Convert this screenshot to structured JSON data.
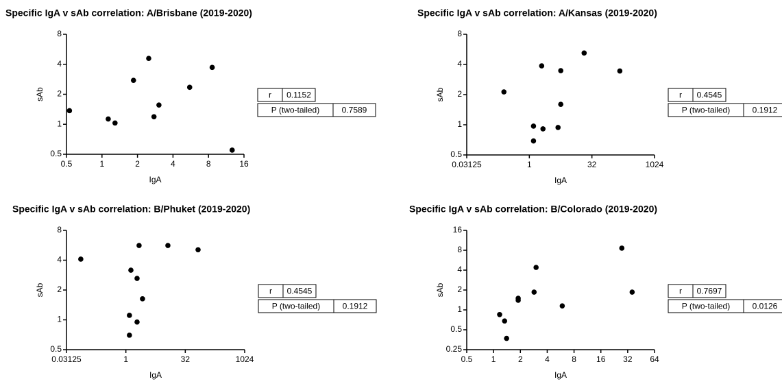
{
  "chart_data": [
    {
      "type": "scatter",
      "title": "Specific IgA v sAb correlation: A/Brisbane (2019-2020)",
      "x_label": "IgA",
      "y_label": "sAb",
      "xscale": "log",
      "yscale": "log",
      "color": "#000000",
      "x": [
        0.53,
        1.13,
        1.29,
        1.85,
        2.49,
        2.76,
        3.04,
        5.54,
        8.6,
        12.7
      ],
      "values": [
        1.37,
        1.13,
        1.03,
        2.76,
        4.58,
        1.19,
        1.56,
        2.35,
        3.72,
        0.55
      ],
      "xlim": [
        0.5,
        16
      ],
      "xticks": [
        0.5,
        1,
        2,
        4,
        8,
        16
      ],
      "ylim": [
        0.5,
        8
      ],
      "yticks": [
        0.5,
        1,
        2,
        4,
        8
      ],
      "stats": [
        {
          "label": "r",
          "value": 0.1152
        },
        {
          "label": "P (two-tailed)",
          "value": 0.7589
        }
      ]
    },
    {
      "type": "scatter",
      "title": "Specific IgA v sAb correlation: A/Kansas (2019-2020)",
      "x_label": "IgA",
      "y_label": "sAb",
      "xscale": "log",
      "yscale": "log",
      "color": "#000000",
      "x": [
        0.245,
        1.98,
        5.7,
        20.8,
        150,
        5.7,
        1.26,
        2.13,
        4.9,
        1.26
      ],
      "values": [
        2.13,
        3.87,
        3.47,
        5.2,
        3.44,
        1.6,
        0.97,
        0.91,
        0.94,
        0.69
      ],
      "xlim": [
        0.03125,
        1024
      ],
      "xticks": [
        0.03125,
        1,
        32,
        1024
      ],
      "ylim": [
        0.5,
        8
      ],
      "yticks": [
        0.5,
        1,
        2,
        4,
        8
      ],
      "stats": [
        {
          "label": "r",
          "value": 0.4545
        },
        {
          "label": "P (two-tailed)",
          "value": 0.1912
        }
      ]
    },
    {
      "type": "scatter",
      "title": "Specific IgA v sAb correlation: B/Phuket (2019-2020)",
      "x_label": "IgA",
      "y_label": "sAb",
      "xscale": "log",
      "yscale": "log",
      "color": "#000000",
      "x": [
        0.072,
        2.16,
        11.6,
        67.5,
        1.34,
        1.92,
        2.64,
        1.23,
        1.92,
        1.23
      ],
      "values": [
        4.1,
        5.63,
        5.63,
        5.1,
        3.17,
        2.62,
        1.63,
        1.11,
        0.95,
        0.7
      ],
      "xlim": [
        0.03125,
        1024
      ],
      "xticks": [
        0.03125,
        1,
        32,
        1024
      ],
      "ylim": [
        0.5,
        8
      ],
      "yticks": [
        0.5,
        1,
        2,
        4,
        8
      ],
      "stats": [
        {
          "label": "r",
          "value": 0.4545
        },
        {
          "label": "P (two-tailed)",
          "value": 0.1912
        }
      ]
    },
    {
      "type": "scatter",
      "title": "Specific IgA v sAb correlation: B/Colorado  (2019-2020)",
      "x_label": "IgA",
      "y_label": "sAb",
      "xscale": "log",
      "yscale": "log",
      "color": "#000000",
      "x": [
        1.17,
        1.33,
        1.4,
        1.89,
        1.89,
        2.85,
        3.0,
        5.9,
        27.5,
        35.9
      ],
      "values": [
        0.85,
        0.68,
        0.37,
        1.5,
        1.4,
        1.86,
        4.4,
        1.15,
        8.6,
        1.86
      ],
      "xlim": [
        0.5,
        64
      ],
      "xticks": [
        0.5,
        1,
        2,
        4,
        8,
        16,
        32,
        64
      ],
      "ylim": [
        0.25,
        16
      ],
      "yticks": [
        0.25,
        0.5,
        1,
        2,
        4,
        8,
        16
      ],
      "stats": [
        {
          "label": "r",
          "value": 0.7697
        },
        {
          "label": "P (two-tailed)",
          "value": 0.0126
        }
      ]
    }
  ]
}
